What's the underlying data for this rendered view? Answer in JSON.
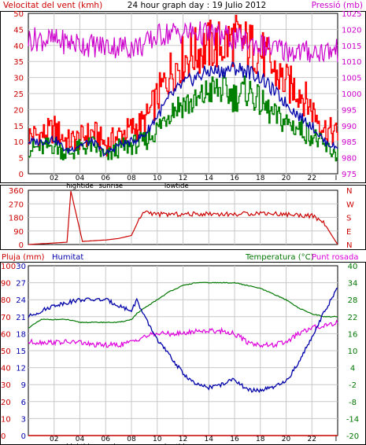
{
  "colors": {
    "wind_avg": "#008000",
    "wind_gust": "#ff0000",
    "wind_dir": "#cc0000",
    "pressure": "#cc00cc",
    "humidity": "#0000aa",
    "temperature": "#007700",
    "dewpoint": "#dd00dd",
    "rain": "#cc0000",
    "grid": "#c8c8c8",
    "frame": "#000000"
  },
  "header": {
    "left_title": "Velocitat del vent (kmh)",
    "center_title": "24 hour graph day : 19 Julio 2012",
    "right_title": "Pressió (mb)"
  },
  "x_axis": {
    "hour_labels": [
      "02",
      "04",
      "06",
      "08",
      "10",
      "12",
      "14",
      "16",
      "18",
      "20",
      "22",
      "I"
    ],
    "markers": [
      "hightide",
      "sunrise",
      "lowtide"
    ]
  },
  "chart_data": [
    {
      "type": "line",
      "title": "24 hour graph day : 19 Julio 2012",
      "x": [
        0,
        1,
        2,
        3,
        4,
        5,
        6,
        7,
        8,
        9,
        10,
        11,
        12,
        13,
        14,
        15,
        16,
        17,
        18,
        19,
        20,
        21,
        22,
        23,
        24
      ],
      "ylabel": "Velocitat del vent (kmh)",
      "ylim": [
        0,
        50
      ],
      "ylabel_right": "Pressió (mb)",
      "ylim_right": [
        975,
        1025
      ],
      "grid": true,
      "series": [
        {
          "axis": "left",
          "values": [
            12,
            12,
            14,
            10,
            11,
            13,
            9,
            12,
            14,
            16,
            24,
            32,
            36,
            38,
            40,
            40,
            42,
            40,
            38,
            32,
            28,
            26,
            20,
            14,
            12
          ]
        },
        {
          "axis": "left",
          "values": [
            8,
            8,
            9,
            6,
            8,
            9,
            5,
            8,
            9,
            10,
            14,
            20,
            22,
            22,
            26,
            26,
            24,
            26,
            22,
            18,
            16,
            14,
            12,
            8,
            6
          ]
        },
        {
          "axis": "left",
          "values": [
            10,
            10,
            11,
            7,
            9,
            10,
            6,
            9,
            10,
            12,
            18,
            24,
            28,
            30,
            32,
            32,
            33,
            32,
            30,
            26,
            22,
            18,
            15,
            10,
            8
          ]
        },
        {
          "axis": "right",
          "values": [
            1017,
            1017,
            1016.5,
            1016,
            1015.5,
            1015,
            1014.8,
            1014.7,
            1014.6,
            1015,
            1018,
            1019,
            1019,
            1019,
            1018.5,
            1018,
            1017,
            1016,
            1015,
            1014,
            1013.5,
            1013,
            1013,
            1013.2,
            1013.4
          ]
        }
      ]
    },
    {
      "type": "line",
      "ylabel_right": [
        "N",
        "W",
        "S",
        "E",
        "N"
      ],
      "yticks": [
        "360",
        "270",
        "180",
        "90",
        "0"
      ],
      "ylim": [
        0,
        360
      ],
      "x": [
        0,
        1,
        2,
        3,
        3.3,
        4.2,
        5,
        6,
        7,
        8,
        8.5,
        9,
        10,
        12,
        14,
        16,
        18,
        20,
        22,
        23,
        23.4,
        24
      ],
      "series": [
        {
          "values": [
            0,
            5,
            10,
            15,
            355,
            20,
            25,
            30,
            40,
            60,
            150,
            220,
            200,
            200,
            205,
            200,
            210,
            200,
            190,
            140,
            80,
            0
          ]
        }
      ]
    },
    {
      "type": "line",
      "left_axis_title": "Pluja (mm)",
      "left_axis_title_2": "Humitat",
      "right_axis_title": "Temperatura (°C)",
      "right_axis_title_2": "Punt rosada",
      "rain_ticks": [
        "100",
        "90",
        "80",
        "70",
        "60",
        "50",
        "40",
        "30",
        "20",
        "10",
        "0"
      ],
      "ylabel_left": "Pluja (mm)",
      "ylim_left": [
        0,
        30
      ],
      "left_ticks": [
        "30",
        "27",
        "24",
        "21",
        "18",
        "15",
        "12",
        "9",
        "6",
        "3",
        "0"
      ],
      "ylabel_right": "Temperatura (°C)",
      "ylim_right": [
        -20,
        40
      ],
      "right_ticks": [
        "40",
        "34",
        "28",
        "22",
        "16",
        "10",
        "4",
        "-2",
        "-8",
        "-14",
        "-20"
      ],
      "x": [
        0,
        1,
        2,
        3,
        4,
        5,
        6,
        7,
        8,
        8.4,
        9,
        10,
        11,
        12,
        13,
        14,
        15,
        16,
        17,
        18,
        19,
        20,
        21,
        22,
        23,
        24
      ],
      "series": [
        {
          "axis": "right",
          "name": "Temperatura",
          "values": [
            18,
            21,
            21,
            21,
            20,
            20,
            20,
            20,
            21,
            23,
            25,
            28,
            31,
            33,
            34,
            34,
            34,
            34,
            33,
            32,
            30,
            28,
            25,
            23,
            22,
            22
          ]
        },
        {
          "axis": "right",
          "name": "Punt rosada",
          "values": [
            13,
            13,
            13,
            13,
            13,
            12,
            12,
            12,
            13,
            14,
            15,
            16,
            16,
            16,
            17,
            17,
            17,
            16,
            13,
            12,
            12,
            13,
            16,
            18,
            19,
            20
          ]
        },
        {
          "axis": "left",
          "name": "Humitat",
          "values": [
            21,
            22,
            23,
            23.5,
            24,
            24,
            24,
            23,
            22,
            24,
            21,
            17,
            14,
            11,
            9,
            8.5,
            9,
            10,
            8,
            8,
            8.5,
            9.5,
            13,
            17.5,
            22,
            26
          ]
        },
        {
          "axis": "left",
          "name": "Pluja",
          "values": [
            0,
            0,
            0,
            0,
            0,
            0,
            0,
            0,
            0,
            0,
            0,
            0,
            0,
            0,
            0,
            0,
            0,
            0,
            0,
            0,
            0,
            0,
            0,
            0,
            0,
            0
          ]
        }
      ]
    }
  ]
}
